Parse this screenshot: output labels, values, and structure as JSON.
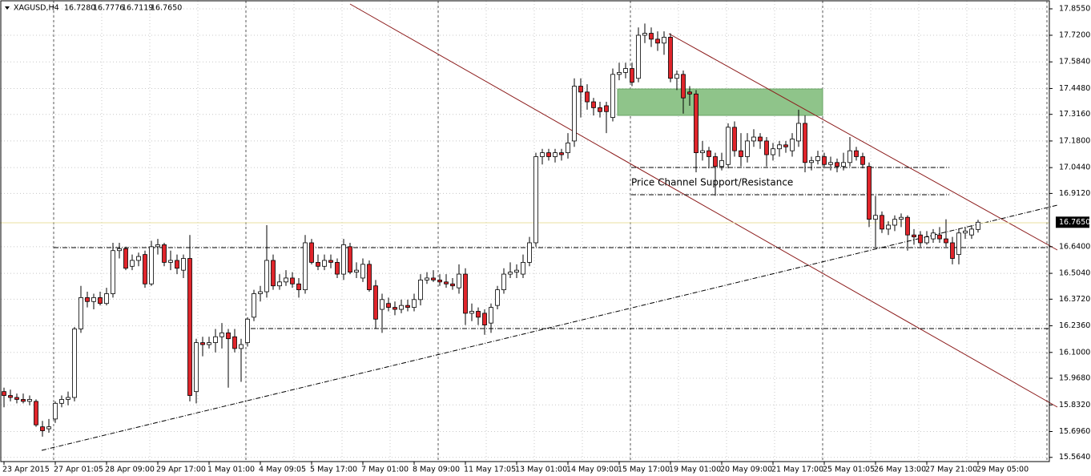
{
  "chart_data": {
    "type": "candlestick",
    "symbol": "XAGUSD,H4",
    "header_values": [
      "16.7280",
      "16.7776",
      "16.7119",
      "16.7650"
    ],
    "annotation": "Price Channel Support/Resistance",
    "current_price": {
      "value": 16.765,
      "label": "16.7650"
    },
    "up_color": "#ffffff",
    "down_color": "#e0252b",
    "wick_color": "#000000",
    "grid": true,
    "ylim": [
      15.5425,
      17.8796
    ],
    "yticks": [
      {
        "value": 17.855,
        "label": "17.8550"
      },
      {
        "value": 17.72,
        "label": "17.7200"
      },
      {
        "value": 17.584,
        "label": "17.5840"
      },
      {
        "value": 17.448,
        "label": "17.4480"
      },
      {
        "value": 17.316,
        "label": "17.3160"
      },
      {
        "value": 17.18,
        "label": "17.1800"
      },
      {
        "value": 17.044,
        "label": "17.0440"
      },
      {
        "value": 16.912,
        "label": "16.9120"
      },
      {
        "value": 16.64,
        "label": "16.6400"
      },
      {
        "value": 16.504,
        "label": "16.5040"
      },
      {
        "value": 16.372,
        "label": "16.3720"
      },
      {
        "value": 16.236,
        "label": "16.2360"
      },
      {
        "value": 16.1,
        "label": "16.1000"
      },
      {
        "value": 15.968,
        "label": "15.9680"
      },
      {
        "value": 15.832,
        "label": "15.8320"
      },
      {
        "value": 15.696,
        "label": "15.6960"
      },
      {
        "value": 15.564,
        "label": "15.5640"
      }
    ],
    "categories": [
      "23 Apr 2015",
      null,
      null,
      null,
      null,
      null,
      null,
      null,
      "27 Apr 01:05",
      null,
      null,
      null,
      null,
      null,
      null,
      null,
      "28 Apr 09:00",
      null,
      null,
      null,
      null,
      null,
      null,
      null,
      "29 Apr 17:00",
      null,
      null,
      null,
      null,
      null,
      null,
      null,
      "1 May 01:00",
      null,
      null,
      null,
      null,
      null,
      null,
      null,
      "4 May 09:05",
      null,
      null,
      null,
      null,
      null,
      null,
      null,
      "5 May 17:00",
      null,
      null,
      null,
      null,
      null,
      null,
      null,
      "7 May 01:00",
      null,
      null,
      null,
      null,
      null,
      null,
      null,
      "8 May 09:00",
      null,
      null,
      null,
      null,
      null,
      null,
      null,
      "11 May 17:05",
      null,
      null,
      null,
      null,
      null,
      null,
      null,
      "13 May 01:00",
      null,
      null,
      null,
      null,
      null,
      null,
      null,
      "14 May 09:00",
      null,
      null,
      null,
      null,
      null,
      null,
      null,
      "15 May 17:00",
      null,
      null,
      null,
      null,
      null,
      null,
      null,
      "19 May 01:00",
      null,
      null,
      null,
      null,
      null,
      null,
      null,
      "20 May 09:00",
      null,
      null,
      null,
      null,
      null,
      null,
      null,
      "21 May 17:00",
      null,
      null,
      null,
      null,
      null,
      null,
      null,
      "25 May 01:05",
      null,
      null,
      null,
      null,
      null,
      null,
      null,
      "26 May 13:00",
      null,
      null,
      null,
      null,
      null,
      null,
      null,
      "27 May 21:00",
      null,
      null,
      null,
      null,
      null,
      null,
      null,
      "29 May 05:00"
    ],
    "ohlc": [
      [
        15.9,
        15.92,
        15.82,
        15.88
      ],
      [
        15.88,
        15.91,
        15.85,
        15.87
      ],
      [
        15.87,
        15.89,
        15.84,
        15.86
      ],
      [
        15.86,
        15.89,
        15.84,
        15.85
      ],
      [
        15.85,
        15.88,
        15.83,
        15.86
      ],
      [
        15.85,
        15.86,
        15.72,
        15.73
      ],
      [
        15.72,
        15.75,
        15.67,
        15.7
      ],
      [
        15.71,
        15.76,
        15.69,
        15.72
      ],
      [
        15.76,
        15.85,
        15.74,
        15.84
      ],
      [
        15.84,
        15.88,
        15.82,
        15.86
      ],
      [
        15.86,
        15.9,
        15.83,
        15.87
      ],
      [
        15.87,
        16.23,
        15.85,
        16.22
      ],
      [
        16.22,
        16.44,
        16.2,
        16.38
      ],
      [
        16.38,
        16.41,
        16.33,
        16.36
      ],
      [
        16.36,
        16.4,
        16.32,
        16.38
      ],
      [
        16.38,
        16.41,
        16.34,
        16.35
      ],
      [
        16.35,
        16.43,
        16.34,
        16.4
      ],
      [
        16.4,
        16.66,
        16.38,
        16.62
      ],
      [
        16.62,
        16.66,
        16.58,
        16.63
      ],
      [
        16.63,
        16.64,
        16.52,
        16.53
      ],
      [
        16.54,
        16.6,
        16.52,
        16.57
      ],
      [
        16.57,
        16.61,
        16.54,
        16.59
      ],
      [
        16.6,
        16.62,
        16.43,
        16.45
      ],
      [
        16.45,
        16.67,
        16.44,
        16.64
      ],
      [
        16.64,
        16.68,
        16.6,
        16.65
      ],
      [
        16.65,
        16.66,
        16.54,
        16.56
      ],
      [
        16.56,
        16.62,
        16.52,
        16.57
      ],
      [
        16.57,
        16.6,
        16.5,
        16.53
      ],
      [
        16.52,
        16.6,
        16.48,
        16.58
      ],
      [
        16.58,
        16.7,
        15.85,
        15.88
      ],
      [
        15.9,
        16.17,
        15.84,
        16.15
      ],
      [
        16.15,
        16.18,
        16.08,
        16.14
      ],
      [
        16.14,
        16.18,
        16.12,
        16.15
      ],
      [
        16.15,
        16.22,
        16.1,
        16.18
      ],
      [
        16.18,
        16.25,
        16.12,
        16.2
      ],
      [
        16.2,
        16.22,
        15.92,
        16.17
      ],
      [
        16.18,
        16.22,
        16.1,
        16.12
      ],
      [
        16.12,
        16.17,
        15.95,
        16.14
      ],
      [
        16.15,
        16.28,
        16.13,
        16.27
      ],
      [
        16.28,
        16.42,
        16.26,
        16.4
      ],
      [
        16.4,
        16.44,
        16.36,
        16.41
      ],
      [
        16.41,
        16.75,
        16.38,
        16.57
      ],
      [
        16.57,
        16.6,
        16.42,
        16.44
      ],
      [
        16.44,
        16.5,
        16.42,
        16.46
      ],
      [
        16.46,
        16.52,
        16.44,
        16.48
      ],
      [
        16.48,
        16.51,
        16.43,
        16.45
      ],
      [
        16.45,
        16.48,
        16.38,
        16.42
      ],
      [
        16.42,
        16.7,
        16.4,
        16.66
      ],
      [
        16.66,
        16.68,
        16.55,
        16.56
      ],
      [
        16.56,
        16.6,
        16.52,
        16.54
      ],
      [
        16.54,
        16.6,
        16.52,
        16.57
      ],
      [
        16.57,
        16.6,
        16.53,
        16.56
      ],
      [
        16.56,
        16.58,
        16.48,
        16.5
      ],
      [
        16.5,
        16.68,
        16.47,
        16.65
      ],
      [
        16.64,
        16.66,
        16.5,
        16.51
      ],
      [
        16.51,
        16.56,
        16.48,
        16.52
      ],
      [
        16.48,
        16.58,
        16.46,
        16.55
      ],
      [
        16.55,
        16.57,
        16.41,
        16.42
      ],
      [
        16.44,
        16.47,
        16.22,
        16.27
      ],
      [
        16.32,
        16.4,
        16.2,
        16.37
      ],
      [
        16.35,
        16.38,
        16.31,
        16.33
      ],
      [
        16.33,
        16.36,
        16.29,
        16.32
      ],
      [
        16.32,
        16.37,
        16.3,
        16.34
      ],
      [
        16.34,
        16.37,
        16.31,
        16.33
      ],
      [
        16.33,
        16.4,
        16.31,
        16.37
      ],
      [
        16.37,
        16.5,
        16.34,
        16.47
      ],
      [
        16.47,
        16.51,
        16.45,
        16.48
      ],
      [
        16.48,
        16.52,
        16.46,
        16.47
      ],
      [
        16.47,
        16.5,
        16.44,
        16.46
      ],
      [
        16.46,
        16.5,
        16.43,
        16.45
      ],
      [
        16.45,
        16.48,
        16.42,
        16.44
      ],
      [
        16.43,
        16.55,
        16.4,
        16.5
      ],
      [
        16.5,
        16.53,
        16.24,
        16.3
      ],
      [
        16.3,
        16.35,
        16.26,
        16.31
      ],
      [
        16.31,
        16.33,
        16.24,
        16.28
      ],
      [
        16.3,
        16.32,
        16.19,
        16.24
      ],
      [
        16.25,
        16.35,
        16.2,
        16.33
      ],
      [
        16.34,
        16.44,
        16.32,
        16.42
      ],
      [
        16.42,
        16.53,
        16.4,
        16.5
      ],
      [
        16.5,
        16.56,
        16.48,
        16.51
      ],
      [
        16.51,
        16.55,
        16.48,
        16.52
      ],
      [
        16.5,
        16.6,
        16.48,
        16.56
      ],
      [
        16.56,
        16.69,
        16.54,
        16.66
      ],
      [
        16.66,
        17.12,
        16.64,
        17.1
      ],
      [
        17.1,
        17.14,
        17.06,
        17.12
      ],
      [
        17.12,
        17.14,
        17.08,
        17.1
      ],
      [
        17.1,
        17.14,
        17.07,
        17.12
      ],
      [
        17.12,
        17.14,
        17.08,
        17.11
      ],
      [
        17.12,
        17.22,
        17.09,
        17.17
      ],
      [
        17.18,
        17.5,
        17.15,
        17.46
      ],
      [
        17.46,
        17.5,
        17.3,
        17.43
      ],
      [
        17.43,
        17.47,
        17.34,
        17.38
      ],
      [
        17.38,
        17.4,
        17.31,
        17.35
      ],
      [
        17.35,
        17.38,
        17.3,
        17.33
      ],
      [
        17.36,
        17.38,
        17.22,
        17.33
      ],
      [
        17.3,
        17.55,
        17.28,
        17.52
      ],
      [
        17.52,
        17.58,
        17.49,
        17.53
      ],
      [
        17.53,
        17.58,
        17.5,
        17.55
      ],
      [
        17.55,
        17.58,
        17.46,
        17.48
      ],
      [
        17.5,
        17.76,
        17.48,
        17.72
      ],
      [
        17.72,
        17.78,
        17.68,
        17.73
      ],
      [
        17.73,
        17.76,
        17.66,
        17.7
      ],
      [
        17.7,
        17.74,
        17.64,
        17.68
      ],
      [
        17.68,
        17.74,
        17.62,
        17.71
      ],
      [
        17.71,
        17.73,
        17.48,
        17.5
      ],
      [
        17.5,
        17.54,
        17.44,
        17.52
      ],
      [
        17.52,
        17.54,
        17.32,
        17.4
      ],
      [
        17.43,
        17.46,
        17.36,
        17.42
      ],
      [
        17.42,
        17.44,
        17.02,
        17.12
      ],
      [
        17.12,
        17.18,
        17.08,
        17.13
      ],
      [
        17.13,
        17.15,
        17.04,
        17.1
      ],
      [
        17.1,
        17.12,
        16.9,
        17.05
      ],
      [
        17.05,
        17.12,
        17.03,
        17.08
      ],
      [
        17.06,
        17.27,
        17.04,
        17.25
      ],
      [
        17.25,
        17.28,
        17.1,
        17.13
      ],
      [
        17.13,
        17.22,
        17.05,
        17.1
      ],
      [
        17.1,
        17.22,
        17.07,
        17.18
      ],
      [
        17.18,
        17.24,
        17.15,
        17.2
      ],
      [
        17.2,
        17.22,
        17.14,
        17.18
      ],
      [
        17.18,
        17.2,
        17.05,
        17.11
      ],
      [
        17.11,
        17.17,
        17.08,
        17.14
      ],
      [
        17.14,
        17.18,
        17.1,
        17.16
      ],
      [
        17.16,
        17.18,
        17.12,
        17.15
      ],
      [
        17.13,
        17.22,
        17.1,
        17.19
      ],
      [
        17.18,
        17.34,
        17.15,
        17.27
      ],
      [
        17.27,
        17.31,
        17.02,
        17.07
      ],
      [
        17.07,
        17.1,
        17.03,
        17.08
      ],
      [
        17.08,
        17.13,
        17.06,
        17.1
      ],
      [
        17.1,
        17.12,
        17.04,
        17.06
      ],
      [
        17.06,
        17.1,
        17.03,
        17.07
      ],
      [
        17.07,
        17.09,
        17.02,
        17.05
      ],
      [
        17.05,
        17.12,
        17.03,
        17.07
      ],
      [
        17.07,
        17.2,
        17.05,
        17.13
      ],
      [
        17.13,
        17.15,
        17.08,
        17.1
      ],
      [
        17.1,
        17.12,
        17.04,
        17.06
      ],
      [
        17.05,
        17.07,
        16.74,
        16.78
      ],
      [
        16.78,
        16.9,
        16.64,
        16.8
      ],
      [
        16.8,
        16.82,
        16.71,
        16.73
      ],
      [
        16.73,
        16.77,
        16.7,
        16.75
      ],
      [
        16.75,
        16.8,
        16.72,
        16.78
      ],
      [
        16.78,
        16.81,
        16.74,
        16.79
      ],
      [
        16.79,
        16.8,
        16.62,
        16.7
      ],
      [
        16.7,
        16.73,
        16.65,
        16.69
      ],
      [
        16.7,
        16.72,
        16.64,
        16.66
      ],
      [
        16.66,
        16.72,
        16.65,
        16.69
      ],
      [
        16.68,
        16.73,
        16.66,
        16.71
      ],
      [
        16.7,
        16.74,
        16.66,
        16.68
      ],
      [
        16.68,
        16.78,
        16.64,
        16.66
      ],
      [
        16.66,
        16.69,
        16.55,
        16.58
      ],
      [
        16.6,
        16.73,
        16.55,
        16.71
      ],
      [
        16.71,
        16.74,
        16.68,
        16.72
      ],
      [
        16.7,
        16.75,
        16.68,
        16.73
      ],
      [
        16.728,
        16.7776,
        16.7119,
        16.765
      ]
    ]
  }
}
